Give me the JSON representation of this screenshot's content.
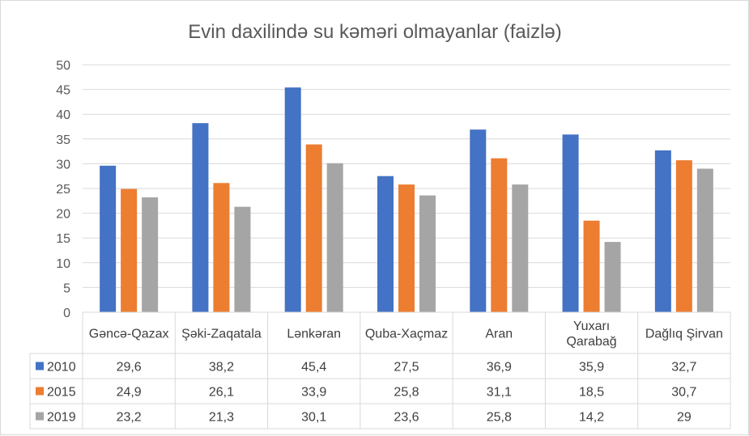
{
  "chart_data": {
    "type": "bar",
    "title": "Evin daxilində su kəməri olmayanlar (faizlə)",
    "categories": [
      "Gəncə-Qazax",
      "Şəki-Zaqatala",
      "Lənkəran",
      "Quba-Xaçmaz",
      "Aran",
      "Yuxarı Qarabağ",
      "Dağlıq Şirvan"
    ],
    "category_lines": [
      [
        "Gəncə-Qazax"
      ],
      [
        "Şəki-Zaqatala"
      ],
      [
        "Lənkəran"
      ],
      [
        "Quba-Xaçmaz"
      ],
      [
        "Aran"
      ],
      [
        "Yuxarı",
        "Qarabağ"
      ],
      [
        "Dağlıq Şirvan"
      ]
    ],
    "series": [
      {
        "name": "2010",
        "color": "#4472c4",
        "values": [
          29.6,
          38.2,
          45.4,
          27.5,
          36.9,
          35.9,
          32.7
        ],
        "labels": [
          "29,6",
          "38,2",
          "45,4",
          "27,5",
          "36,9",
          "35,9",
          "32,7"
        ]
      },
      {
        "name": "2015",
        "color": "#ed7d31",
        "values": [
          24.9,
          26.1,
          33.9,
          25.8,
          31.1,
          18.5,
          30.7
        ],
        "labels": [
          "24,9",
          "26,1",
          "33,9",
          "25,8",
          "31,1",
          "18,5",
          "30,7"
        ]
      },
      {
        "name": "2019",
        "color": "#a5a5a5",
        "values": [
          23.2,
          21.3,
          30.1,
          23.6,
          25.8,
          14.2,
          29
        ],
        "labels": [
          "23,2",
          "21,3",
          "30,1",
          "23,6",
          "25,8",
          "14,2",
          "29"
        ]
      }
    ],
    "ylim": [
      0,
      50
    ],
    "yticks": [
      0,
      5,
      10,
      15,
      20,
      25,
      30,
      35,
      40,
      45,
      50
    ],
    "grid": true,
    "legend": "data-table",
    "xlabel": "",
    "ylabel": ""
  }
}
